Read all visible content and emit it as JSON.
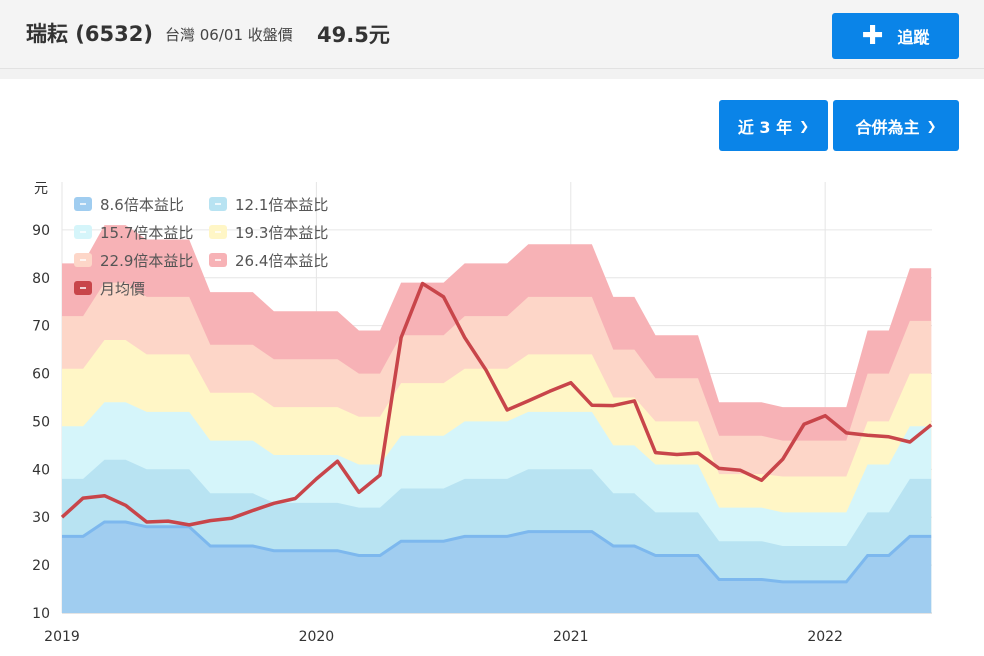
{
  "header": {
    "title": "瑞耘 (6532)",
    "subtitle": "台灣 06/01 收盤價",
    "price": "49.5元",
    "track_button": "追蹤",
    "plus_icon": "plus-icon"
  },
  "controls": {
    "range_label": "近 3 年",
    "basis_label": "合併為主",
    "chevron_icon": "chevron-down-icon"
  },
  "chart_data": {
    "type": "area",
    "ylabel": "元",
    "ylim": [
      10,
      100
    ],
    "yticks": [
      10,
      20,
      30,
      40,
      50,
      60,
      70,
      80,
      90
    ],
    "xlim": [
      2019.0,
      2022.42
    ],
    "xticks": [
      {
        "label": "2019",
        "v": 2019.0
      },
      {
        "label": "2020",
        "v": 2020.0
      },
      {
        "label": "2021",
        "v": 2021.0
      },
      {
        "label": "2022",
        "v": 2022.0
      }
    ],
    "grid": true,
    "legend_position": "top-left",
    "x": [
      2019.0,
      2019.083,
      2019.167,
      2019.25,
      2019.333,
      2019.417,
      2019.5,
      2019.583,
      2019.667,
      2019.75,
      2019.833,
      2019.917,
      2020.0,
      2020.083,
      2020.167,
      2020.25,
      2020.333,
      2020.417,
      2020.5,
      2020.583,
      2020.667,
      2020.75,
      2020.833,
      2020.917,
      2021.0,
      2021.083,
      2021.167,
      2021.25,
      2021.333,
      2021.417,
      2021.5,
      2021.583,
      2021.667,
      2021.75,
      2021.833,
      2021.917,
      2022.0,
      2022.083,
      2022.167,
      2022.25,
      2022.333,
      2022.417
    ],
    "bands": [
      {
        "name": "8.6倍本益比",
        "color": "#a0cdf0",
        "values": [
          26,
          26,
          29,
          29,
          28,
          28,
          28,
          24,
          24,
          24,
          23,
          23,
          23,
          23,
          22,
          22,
          25,
          25,
          25,
          26,
          26,
          26,
          27,
          27,
          27,
          27,
          24,
          24,
          22,
          22,
          22,
          17,
          17,
          17,
          16.5,
          16.5,
          16.5,
          16.5,
          22,
          22,
          26,
          26
        ]
      },
      {
        "name": "12.1倍本益比",
        "color": "#b8e3f2",
        "values": [
          38,
          38,
          42,
          42,
          40,
          40,
          40,
          35,
          35,
          35,
          33,
          33,
          33,
          33,
          32,
          32,
          36,
          36,
          36,
          38,
          38,
          38,
          40,
          40,
          40,
          40,
          35,
          35,
          31,
          31,
          31,
          25,
          25,
          25,
          24,
          24,
          24,
          24,
          31,
          31,
          38,
          38
        ]
      },
      {
        "name": "15.7倍本益比",
        "color": "#d5f5fa",
        "values": [
          49,
          49,
          54,
          54,
          52,
          52,
          52,
          46,
          46,
          46,
          43,
          43,
          43,
          43,
          41,
          41,
          47,
          47,
          47,
          50,
          50,
          50,
          52,
          52,
          52,
          52,
          45,
          45,
          41,
          41,
          41,
          32,
          32,
          32,
          31,
          31,
          31,
          31,
          41,
          41,
          49,
          49
        ]
      },
      {
        "name": "19.3倍本益比",
        "color": "#fff6c6",
        "values": [
          61,
          61,
          67,
          67,
          64,
          64,
          64,
          56,
          56,
          56,
          53,
          53,
          53,
          53,
          51,
          51,
          58,
          58,
          58,
          61,
          61,
          61,
          64,
          64,
          64,
          64,
          55,
          55,
          50,
          50,
          50,
          39,
          39,
          39,
          38.5,
          38.5,
          38.5,
          38.5,
          50,
          50,
          60,
          60
        ]
      },
      {
        "name": "22.9倍本益比",
        "color": "#fdd6c8",
        "values": [
          72,
          72,
          79,
          79,
          76,
          76,
          76,
          66,
          66,
          66,
          63,
          63,
          63,
          63,
          60,
          60,
          68,
          68,
          68,
          72,
          72,
          72,
          76,
          76,
          76,
          76,
          65,
          65,
          59,
          59,
          59,
          47,
          47,
          47,
          46,
          46,
          46,
          46,
          60,
          60,
          71,
          71
        ]
      },
      {
        "name": "26.4倍本益比",
        "color": "#f7b2b6",
        "values": [
          83,
          83,
          91,
          91,
          88,
          88,
          88,
          77,
          77,
          77,
          73,
          73,
          73,
          73,
          69,
          69,
          79,
          79,
          79,
          83,
          83,
          83,
          87,
          87,
          87,
          87,
          76,
          76,
          68,
          68,
          68,
          54,
          54,
          54,
          53,
          53,
          53,
          53,
          69,
          69,
          82,
          82
        ]
      }
    ],
    "series": [
      {
        "name": "月均價",
        "color": "#c8454a",
        "values": [
          30,
          34,
          34.5,
          32.5,
          29,
          29.2,
          28.4,
          29.3,
          29.8,
          31.4,
          32.9,
          33.9,
          38,
          41.7,
          35.2,
          38.8,
          67.5,
          78.8,
          76,
          67.5,
          60.7,
          52.4,
          54.3,
          56.3,
          58.1,
          53.4,
          53.3,
          54.3,
          43.5,
          43.1,
          43.4,
          40.2,
          39.8,
          37.7,
          42.1,
          49.4,
          51.2,
          47.6,
          47.1,
          46.8,
          45.7,
          49.3
        ]
      }
    ]
  }
}
